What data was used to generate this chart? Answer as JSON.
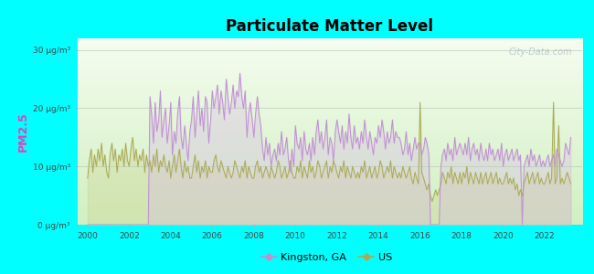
{
  "title": "Particulate Matter Level",
  "ylabel": "PM2.5",
  "background_color": "#00FFFF",
  "ylim": [
    0,
    32
  ],
  "yticks": [
    0,
    10,
    20,
    30
  ],
  "ytick_labels": [
    "0 μg/m³",
    "10 μg/m³",
    "20 μg/m³",
    "30 μg/m³"
  ],
  "xstart": 1999.5,
  "xend": 2023.8,
  "kingston_color": "#c090d0",
  "us_color": "#aaaa55",
  "kingston_fill": "#d8b8e8",
  "us_fill": "#cccc88",
  "watermark": "City-Data.com",
  "legend_kingston": "Kingston, GA",
  "legend_us": "US",
  "plot_bg_top": "#f5faf0",
  "plot_bg_bottom": "#d8f0c8",
  "kingston_x": [
    2000.0,
    2000.08,
    2000.17,
    2000.25,
    2000.33,
    2000.42,
    2000.5,
    2000.58,
    2000.67,
    2000.75,
    2000.83,
    2000.92,
    2001.0,
    2001.08,
    2001.17,
    2001.25,
    2001.33,
    2001.42,
    2001.5,
    2001.58,
    2001.67,
    2001.75,
    2001.83,
    2001.92,
    2002.0,
    2002.08,
    2002.17,
    2002.25,
    2002.33,
    2002.42,
    2002.5,
    2002.58,
    2002.67,
    2002.75,
    2002.83,
    2002.92,
    2003.0,
    2003.08,
    2003.17,
    2003.25,
    2003.33,
    2003.42,
    2003.5,
    2003.58,
    2003.67,
    2003.75,
    2003.83,
    2003.92,
    2004.0,
    2004.08,
    2004.17,
    2004.25,
    2004.33,
    2004.42,
    2004.5,
    2004.58,
    2004.67,
    2004.75,
    2004.83,
    2004.92,
    2005.0,
    2005.08,
    2005.17,
    2005.25,
    2005.33,
    2005.42,
    2005.5,
    2005.58,
    2005.67,
    2005.75,
    2005.83,
    2005.92,
    2006.0,
    2006.08,
    2006.17,
    2006.25,
    2006.33,
    2006.42,
    2006.5,
    2006.58,
    2006.67,
    2006.75,
    2006.83,
    2006.92,
    2007.0,
    2007.08,
    2007.17,
    2007.25,
    2007.33,
    2007.42,
    2007.5,
    2007.58,
    2007.67,
    2007.75,
    2007.83,
    2007.92,
    2008.0,
    2008.08,
    2008.17,
    2008.25,
    2008.33,
    2008.42,
    2008.5,
    2008.58,
    2008.67,
    2008.75,
    2008.83,
    2008.92,
    2009.0,
    2009.08,
    2009.17,
    2009.25,
    2009.33,
    2009.42,
    2009.5,
    2009.58,
    2009.67,
    2009.75,
    2009.83,
    2009.92,
    2010.0,
    2010.08,
    2010.17,
    2010.25,
    2010.33,
    2010.42,
    2010.5,
    2010.58,
    2010.67,
    2010.75,
    2010.83,
    2010.92,
    2011.0,
    2011.08,
    2011.17,
    2011.25,
    2011.33,
    2011.42,
    2011.5,
    2011.58,
    2011.67,
    2011.75,
    2011.83,
    2011.92,
    2012.0,
    2012.08,
    2012.17,
    2012.25,
    2012.33,
    2012.42,
    2012.5,
    2012.58,
    2012.67,
    2012.75,
    2012.83,
    2012.92,
    2013.0,
    2013.08,
    2013.17,
    2013.25,
    2013.33,
    2013.42,
    2013.5,
    2013.58,
    2013.67,
    2013.75,
    2013.83,
    2013.92,
    2014.0,
    2014.08,
    2014.17,
    2014.25,
    2014.33,
    2014.42,
    2014.5,
    2014.58,
    2014.67,
    2014.75,
    2014.83,
    2014.92,
    2015.0,
    2015.08,
    2015.17,
    2015.25,
    2015.33,
    2015.42,
    2015.5,
    2015.58,
    2015.67,
    2015.75,
    2015.83,
    2015.92,
    2016.0,
    2016.08,
    2016.17,
    2016.25,
    2016.33,
    2016.42,
    2016.5,
    2016.58,
    2016.67,
    2016.75,
    2016.83,
    2016.92,
    2017.0,
    2017.08,
    2017.17,
    2017.25,
    2017.33,
    2017.42,
    2017.5,
    2017.58,
    2017.67,
    2017.75,
    2017.83,
    2017.92,
    2018.0,
    2018.08,
    2018.17,
    2018.25,
    2018.33,
    2018.42,
    2018.5,
    2018.58,
    2018.67,
    2018.75,
    2018.83,
    2018.92,
    2019.0,
    2019.08,
    2019.17,
    2019.25,
    2019.33,
    2019.42,
    2019.5,
    2019.58,
    2019.67,
    2019.75,
    2019.83,
    2019.92,
    2020.0,
    2020.08,
    2020.17,
    2020.25,
    2020.33,
    2020.42,
    2020.5,
    2020.58,
    2020.67,
    2020.75,
    2020.83,
    2020.92,
    2021.0,
    2021.08,
    2021.17,
    2021.25,
    2021.33,
    2021.42,
    2021.5,
    2021.58,
    2021.67,
    2021.75,
    2021.83,
    2021.92,
    2022.0,
    2022.08,
    2022.17,
    2022.25,
    2022.33,
    2022.42,
    2022.5,
    2022.58,
    2022.67,
    2022.75,
    2022.83,
    2022.92,
    2023.0,
    2023.08,
    2023.17,
    2023.25
  ],
  "kingston_y": [
    0,
    0,
    0,
    0,
    0,
    0,
    0,
    0,
    0,
    0,
    0,
    0,
    0,
    0,
    0,
    0,
    0,
    0,
    0,
    0,
    0,
    0,
    0,
    0,
    0,
    0,
    0,
    0,
    0,
    0,
    0,
    0,
    0,
    0,
    0,
    0,
    22,
    19,
    14,
    21,
    16,
    18,
    23,
    15,
    18,
    20,
    14,
    17,
    21,
    12,
    16,
    14,
    19,
    22,
    15,
    13,
    17,
    14,
    11,
    16,
    18,
    22,
    15,
    19,
    23,
    17,
    20,
    16,
    22,
    21,
    14,
    18,
    23,
    20,
    22,
    24,
    19,
    23,
    21,
    18,
    25,
    22,
    19,
    21,
    24,
    20,
    23,
    22,
    26,
    22,
    20,
    23,
    15,
    19,
    21,
    18,
    15,
    19,
    22,
    19,
    17,
    13,
    11,
    15,
    12,
    14,
    10,
    12,
    13,
    11,
    14,
    12,
    16,
    12,
    13,
    15,
    11,
    9,
    13,
    10,
    17,
    14,
    13,
    15,
    11,
    16,
    13,
    12,
    14,
    11,
    15,
    12,
    16,
    18,
    14,
    16,
    13,
    15,
    18,
    12,
    15,
    14,
    11,
    16,
    18,
    16,
    14,
    17,
    13,
    16,
    14,
    19,
    15,
    13,
    17,
    14,
    15,
    13,
    16,
    14,
    18,
    15,
    13,
    16,
    14,
    12,
    15,
    14,
    17,
    15,
    18,
    16,
    13,
    16,
    14,
    15,
    18,
    14,
    16,
    15,
    15,
    14,
    12,
    13,
    16,
    12,
    14,
    11,
    13,
    15,
    13,
    14,
    14,
    12,
    13,
    15,
    14,
    12,
    0,
    0,
    0,
    0,
    0,
    0,
    10,
    12,
    13,
    11,
    14,
    12,
    13,
    11,
    15,
    12,
    13,
    14,
    13,
    12,
    14,
    12,
    15,
    11,
    13,
    14,
    12,
    13,
    11,
    14,
    12,
    11,
    13,
    11,
    14,
    12,
    13,
    11,
    12,
    13,
    11,
    14,
    10,
    12,
    13,
    11,
    12,
    13,
    11,
    12,
    13,
    11,
    12,
    0,
    10,
    11,
    12,
    10,
    13,
    11,
    12,
    10,
    11,
    12,
    10,
    11,
    10,
    11,
    12,
    10,
    11,
    12,
    10,
    13,
    12,
    11,
    10,
    11,
    14,
    13,
    12,
    15
  ],
  "us_x": [
    2000.0,
    2000.08,
    2000.17,
    2000.25,
    2000.33,
    2000.42,
    2000.5,
    2000.58,
    2000.67,
    2000.75,
    2000.83,
    2000.92,
    2001.0,
    2001.08,
    2001.17,
    2001.25,
    2001.33,
    2001.42,
    2001.5,
    2001.58,
    2001.67,
    2001.75,
    2001.83,
    2001.92,
    2002.0,
    2002.08,
    2002.17,
    2002.25,
    2002.33,
    2002.42,
    2002.5,
    2002.58,
    2002.67,
    2002.75,
    2002.83,
    2002.92,
    2003.0,
    2003.08,
    2003.17,
    2003.25,
    2003.33,
    2003.42,
    2003.5,
    2003.58,
    2003.67,
    2003.75,
    2003.83,
    2003.92,
    2004.0,
    2004.08,
    2004.17,
    2004.25,
    2004.33,
    2004.42,
    2004.5,
    2004.58,
    2004.67,
    2004.75,
    2004.83,
    2004.92,
    2005.0,
    2005.08,
    2005.17,
    2005.25,
    2005.33,
    2005.42,
    2005.5,
    2005.58,
    2005.67,
    2005.75,
    2005.83,
    2005.92,
    2006.0,
    2006.08,
    2006.17,
    2006.25,
    2006.33,
    2006.42,
    2006.5,
    2006.58,
    2006.67,
    2006.75,
    2006.83,
    2006.92,
    2007.0,
    2007.08,
    2007.17,
    2007.25,
    2007.33,
    2007.42,
    2007.5,
    2007.58,
    2007.67,
    2007.75,
    2007.83,
    2007.92,
    2008.0,
    2008.08,
    2008.17,
    2008.25,
    2008.33,
    2008.42,
    2008.5,
    2008.58,
    2008.67,
    2008.75,
    2008.83,
    2008.92,
    2009.0,
    2009.08,
    2009.17,
    2009.25,
    2009.33,
    2009.42,
    2009.5,
    2009.58,
    2009.67,
    2009.75,
    2009.83,
    2009.92,
    2010.0,
    2010.08,
    2010.17,
    2010.25,
    2010.33,
    2010.42,
    2010.5,
    2010.58,
    2010.67,
    2010.75,
    2010.83,
    2010.92,
    2011.0,
    2011.08,
    2011.17,
    2011.25,
    2011.33,
    2011.42,
    2011.5,
    2011.58,
    2011.67,
    2011.75,
    2011.83,
    2011.92,
    2012.0,
    2012.08,
    2012.17,
    2012.25,
    2012.33,
    2012.42,
    2012.5,
    2012.58,
    2012.67,
    2012.75,
    2012.83,
    2012.92,
    2013.0,
    2013.08,
    2013.17,
    2013.25,
    2013.33,
    2013.42,
    2013.5,
    2013.58,
    2013.67,
    2013.75,
    2013.83,
    2013.92,
    2014.0,
    2014.08,
    2014.17,
    2014.25,
    2014.33,
    2014.42,
    2014.5,
    2014.58,
    2014.67,
    2014.75,
    2014.83,
    2014.92,
    2015.0,
    2015.08,
    2015.17,
    2015.25,
    2015.33,
    2015.42,
    2015.5,
    2015.58,
    2015.67,
    2015.75,
    2015.83,
    2015.92,
    2016.0,
    2016.08,
    2016.17,
    2016.25,
    2016.33,
    2016.42,
    2016.5,
    2016.58,
    2016.67,
    2016.75,
    2016.83,
    2016.92,
    2017.0,
    2017.08,
    2017.17,
    2017.25,
    2017.33,
    2017.42,
    2017.5,
    2017.58,
    2017.67,
    2017.75,
    2017.83,
    2017.92,
    2018.0,
    2018.08,
    2018.17,
    2018.25,
    2018.33,
    2018.42,
    2018.5,
    2018.58,
    2018.67,
    2018.75,
    2018.83,
    2018.92,
    2019.0,
    2019.08,
    2019.17,
    2019.25,
    2019.33,
    2019.42,
    2019.5,
    2019.58,
    2019.67,
    2019.75,
    2019.83,
    2019.92,
    2020.0,
    2020.08,
    2020.17,
    2020.25,
    2020.33,
    2020.42,
    2020.5,
    2020.58,
    2020.67,
    2020.75,
    2020.83,
    2020.92,
    2021.0,
    2021.08,
    2021.17,
    2021.25,
    2021.33,
    2021.42,
    2021.5,
    2021.58,
    2021.67,
    2021.75,
    2021.83,
    2021.92,
    2022.0,
    2022.08,
    2022.17,
    2022.25,
    2022.33,
    2022.42,
    2022.5,
    2022.58,
    2022.67,
    2022.75,
    2022.83,
    2022.92,
    2023.0,
    2023.08,
    2023.17,
    2023.25
  ],
  "us_y": [
    8,
    11,
    13,
    9,
    12,
    10,
    13,
    11,
    14,
    10,
    12,
    9,
    8,
    12,
    14,
    11,
    13,
    9,
    12,
    11,
    13,
    10,
    14,
    11,
    10,
    13,
    15,
    11,
    13,
    10,
    12,
    11,
    13,
    9,
    12,
    10,
    11,
    9,
    12,
    10,
    13,
    9,
    11,
    10,
    12,
    10,
    9,
    11,
    8,
    10,
    12,
    9,
    11,
    13,
    10,
    8,
    11,
    9,
    10,
    8,
    8,
    10,
    12,
    9,
    11,
    8,
    10,
    9,
    11,
    8,
    10,
    9,
    9,
    11,
    12,
    10,
    9,
    11,
    10,
    9,
    8,
    10,
    9,
    8,
    9,
    11,
    10,
    9,
    8,
    10,
    9,
    11,
    8,
    10,
    9,
    8,
    8,
    10,
    11,
    9,
    10,
    8,
    9,
    10,
    9,
    8,
    10,
    9,
    8,
    9,
    11,
    10,
    8,
    9,
    10,
    8,
    9,
    11,
    9,
    8,
    8,
    10,
    9,
    11,
    8,
    10,
    9,
    8,
    11,
    9,
    10,
    8,
    9,
    11,
    10,
    8,
    9,
    10,
    11,
    8,
    10,
    9,
    11,
    10,
    9,
    8,
    10,
    9,
    11,
    8,
    10,
    9,
    8,
    10,
    9,
    8,
    9,
    8,
    10,
    9,
    11,
    8,
    9,
    10,
    8,
    9,
    10,
    8,
    9,
    11,
    10,
    8,
    9,
    10,
    9,
    11,
    8,
    10,
    9,
    8,
    9,
    8,
    10,
    9,
    8,
    9,
    10,
    8,
    7,
    9,
    8,
    7,
    21,
    9,
    8,
    7,
    6,
    7,
    5,
    4,
    5,
    6,
    5,
    6,
    7,
    9,
    8,
    7,
    9,
    8,
    10,
    7,
    9,
    8,
    7,
    9,
    7,
    9,
    8,
    10,
    7,
    9,
    8,
    7,
    9,
    8,
    7,
    9,
    7,
    8,
    9,
    7,
    8,
    9,
    7,
    8,
    9,
    7,
    8,
    7,
    7,
    8,
    9,
    7,
    8,
    7,
    8,
    6,
    7,
    5,
    6,
    5,
    7,
    8,
    9,
    7,
    8,
    9,
    7,
    8,
    9,
    7,
    8,
    7,
    7,
    8,
    9,
    7,
    8,
    21,
    7,
    8,
    17,
    7,
    8,
    7,
    8,
    9,
    8,
    7
  ]
}
